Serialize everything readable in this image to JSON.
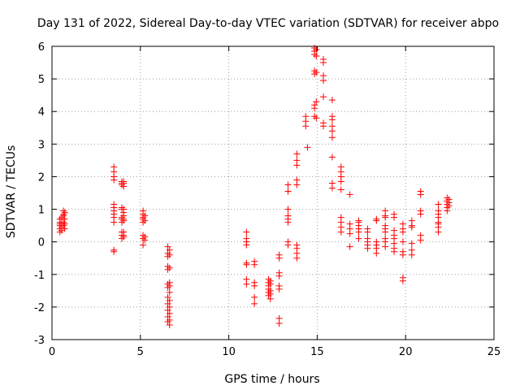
{
  "chart_data": {
    "type": "scatter",
    "title": "Day 131 of 2022, Sidereal Day-to-day VTEC variation (SDTVAR) for receiver abpo",
    "xlabel": "GPS time / hours",
    "ylabel": "SDTVAR / TECUs",
    "xlim": [
      0,
      25
    ],
    "ylim": [
      -3,
      6
    ],
    "xticks": [
      0,
      5,
      10,
      15,
      20,
      25
    ],
    "yticks": [
      -3,
      -2,
      -1,
      0,
      1,
      2,
      3,
      4,
      5,
      6
    ],
    "xtick_labels": [
      "0",
      "5",
      "10",
      "15",
      "20",
      "25"
    ],
    "ytick_labels": [
      "-3",
      "-2",
      "-1",
      "0",
      "1",
      "2",
      "3",
      "4",
      "5",
      "6"
    ],
    "grid": true,
    "marker": "+",
    "color": "#ff0000",
    "series": [
      {
        "name": "SDTVAR",
        "points": [
          [
            0.45,
            0.3
          ],
          [
            0.45,
            0.4
          ],
          [
            0.45,
            0.5
          ],
          [
            0.45,
            0.55
          ],
          [
            0.45,
            0.6
          ],
          [
            0.45,
            0.7
          ],
          [
            0.55,
            0.35
          ],
          [
            0.55,
            0.45
          ],
          [
            0.55,
            0.6
          ],
          [
            0.55,
            0.7
          ],
          [
            0.55,
            0.75
          ],
          [
            0.65,
            0.5
          ],
          [
            0.65,
            0.6
          ],
          [
            0.65,
            0.8
          ],
          [
            0.65,
            0.85
          ],
          [
            0.65,
            0.95
          ],
          [
            0.72,
            0.4
          ],
          [
            0.72,
            0.55
          ],
          [
            0.72,
            0.7
          ],
          [
            0.72,
            0.9
          ],
          [
            3.5,
            2.3
          ],
          [
            3.5,
            2.15
          ],
          [
            3.5,
            2.0
          ],
          [
            3.5,
            1.9
          ],
          [
            3.5,
            1.15
          ],
          [
            3.5,
            1.05
          ],
          [
            3.5,
            0.95
          ],
          [
            3.5,
            0.85
          ],
          [
            3.5,
            0.75
          ],
          [
            3.5,
            0.6
          ],
          [
            3.5,
            -0.25
          ],
          [
            3.5,
            -0.3
          ],
          [
            3.95,
            1.85
          ],
          [
            3.95,
            1.8
          ],
          [
            3.95,
            1.75
          ],
          [
            3.95,
            1.05
          ],
          [
            3.95,
            1.0
          ],
          [
            3.95,
            0.75
          ],
          [
            3.95,
            0.7
          ],
          [
            3.95,
            0.6
          ],
          [
            3.95,
            0.3
          ],
          [
            3.95,
            0.2
          ],
          [
            3.95,
            0.1
          ],
          [
            4.05,
            1.85
          ],
          [
            4.05,
            1.8
          ],
          [
            4.05,
            1.7
          ],
          [
            4.05,
            1.0
          ],
          [
            4.05,
            0.9
          ],
          [
            4.05,
            0.8
          ],
          [
            4.05,
            0.7
          ],
          [
            4.05,
            0.65
          ],
          [
            4.05,
            0.3
          ],
          [
            4.05,
            0.2
          ],
          [
            4.05,
            0.15
          ],
          [
            5.15,
            0.95
          ],
          [
            5.15,
            0.85
          ],
          [
            5.15,
            0.75
          ],
          [
            5.15,
            0.7
          ],
          [
            5.15,
            0.6
          ],
          [
            5.15,
            0.2
          ],
          [
            5.15,
            0.1
          ],
          [
            5.15,
            -0.1
          ],
          [
            5.25,
            0.8
          ],
          [
            5.25,
            0.65
          ],
          [
            5.25,
            0.15
          ],
          [
            5.25,
            0.05
          ],
          [
            6.55,
            -0.15
          ],
          [
            6.55,
            -0.35
          ],
          [
            6.55,
            -0.45
          ],
          [
            6.55,
            -0.75
          ],
          [
            6.55,
            -0.85
          ],
          [
            6.55,
            -1.3
          ],
          [
            6.55,
            -1.4
          ],
          [
            6.55,
            -1.7
          ],
          [
            6.55,
            -1.9
          ],
          [
            6.55,
            -2.1
          ],
          [
            6.55,
            -2.3
          ],
          [
            6.55,
            -2.45
          ],
          [
            6.65,
            -0.25
          ],
          [
            6.65,
            -0.4
          ],
          [
            6.65,
            -0.8
          ],
          [
            6.65,
            -1.25
          ],
          [
            6.65,
            -1.35
          ],
          [
            6.65,
            -1.55
          ],
          [
            6.65,
            -1.8
          ],
          [
            6.65,
            -2.0
          ],
          [
            6.65,
            -2.2
          ],
          [
            6.65,
            -2.4
          ],
          [
            6.65,
            -2.55
          ],
          [
            11.0,
            0.3
          ],
          [
            11.0,
            0.1
          ],
          [
            11.0,
            0.0
          ],
          [
            11.0,
            -0.1
          ],
          [
            11.0,
            -0.65
          ],
          [
            11.0,
            -0.7
          ],
          [
            11.0,
            -1.15
          ],
          [
            11.0,
            -1.3
          ],
          [
            11.45,
            -0.6
          ],
          [
            11.45,
            -0.7
          ],
          [
            11.45,
            -1.25
          ],
          [
            11.45,
            -1.35
          ],
          [
            11.45,
            -1.7
          ],
          [
            11.45,
            -1.9
          ],
          [
            12.25,
            -1.15
          ],
          [
            12.25,
            -1.25
          ],
          [
            12.25,
            -1.35
          ],
          [
            12.25,
            -1.45
          ],
          [
            12.25,
            -1.55
          ],
          [
            12.25,
            -1.65
          ],
          [
            12.35,
            -1.2
          ],
          [
            12.35,
            -1.3
          ],
          [
            12.35,
            -1.5
          ],
          [
            12.35,
            -1.6
          ],
          [
            12.35,
            -1.75
          ],
          [
            12.85,
            -0.4
          ],
          [
            12.85,
            -0.5
          ],
          [
            12.85,
            -0.95
          ],
          [
            12.85,
            -1.05
          ],
          [
            12.85,
            -1.35
          ],
          [
            12.85,
            -1.45
          ],
          [
            12.85,
            -2.35
          ],
          [
            12.85,
            -2.5
          ],
          [
            13.35,
            1.75
          ],
          [
            13.35,
            1.55
          ],
          [
            13.35,
            1.0
          ],
          [
            13.35,
            0.8
          ],
          [
            13.35,
            0.7
          ],
          [
            13.35,
            0.6
          ],
          [
            13.35,
            0.0
          ],
          [
            13.35,
            -0.1
          ],
          [
            13.85,
            2.7
          ],
          [
            13.85,
            2.5
          ],
          [
            13.85,
            2.35
          ],
          [
            13.85,
            1.9
          ],
          [
            13.85,
            1.75
          ],
          [
            13.85,
            -0.1
          ],
          [
            13.85,
            -0.2
          ],
          [
            13.85,
            -0.35
          ],
          [
            13.85,
            -0.5
          ],
          [
            14.35,
            3.85
          ],
          [
            14.35,
            3.7
          ],
          [
            14.35,
            3.55
          ],
          [
            14.45,
            2.9
          ],
          [
            14.85,
            5.95
          ],
          [
            14.85,
            5.85
          ],
          [
            14.85,
            5.75
          ],
          [
            14.85,
            5.25
          ],
          [
            14.85,
            5.15
          ],
          [
            14.85,
            4.2
          ],
          [
            14.85,
            4.1
          ],
          [
            14.85,
            3.85
          ],
          [
            14.95,
            5.9
          ],
          [
            14.95,
            5.7
          ],
          [
            14.95,
            5.2
          ],
          [
            14.95,
            4.3
          ],
          [
            14.95,
            3.8
          ],
          [
            15.35,
            5.6
          ],
          [
            15.35,
            5.5
          ],
          [
            15.35,
            5.1
          ],
          [
            15.35,
            4.95
          ],
          [
            15.35,
            4.45
          ],
          [
            15.35,
            3.65
          ],
          [
            15.35,
            3.55
          ],
          [
            15.85,
            4.35
          ],
          [
            15.85,
            3.85
          ],
          [
            15.85,
            3.75
          ],
          [
            15.85,
            3.55
          ],
          [
            15.85,
            3.4
          ],
          [
            15.85,
            3.2
          ],
          [
            15.85,
            2.6
          ],
          [
            15.85,
            1.8
          ],
          [
            15.85,
            1.65
          ],
          [
            16.35,
            2.3
          ],
          [
            16.35,
            2.15
          ],
          [
            16.35,
            2.0
          ],
          [
            16.35,
            1.85
          ],
          [
            16.35,
            1.6
          ],
          [
            16.35,
            0.75
          ],
          [
            16.35,
            0.6
          ],
          [
            16.35,
            0.45
          ],
          [
            16.35,
            0.3
          ],
          [
            16.85,
            1.45
          ],
          [
            16.85,
            0.55
          ],
          [
            16.85,
            0.4
          ],
          [
            16.85,
            0.25
          ],
          [
            16.85,
            -0.15
          ],
          [
            17.35,
            0.65
          ],
          [
            17.35,
            0.6
          ],
          [
            17.35,
            0.5
          ],
          [
            17.35,
            0.4
          ],
          [
            17.35,
            0.3
          ],
          [
            17.35,
            0.1
          ],
          [
            17.85,
            0.4
          ],
          [
            17.85,
            0.3
          ],
          [
            17.85,
            0.1
          ],
          [
            17.85,
            0.0
          ],
          [
            17.85,
            -0.1
          ],
          [
            17.85,
            -0.2
          ],
          [
            18.35,
            0.7
          ],
          [
            18.35,
            0.65
          ],
          [
            18.35,
            0.0
          ],
          [
            18.35,
            -0.1
          ],
          [
            18.35,
            -0.2
          ],
          [
            18.35,
            -0.35
          ],
          [
            18.85,
            0.95
          ],
          [
            18.85,
            0.8
          ],
          [
            18.85,
            0.75
          ],
          [
            18.85,
            0.5
          ],
          [
            18.85,
            0.4
          ],
          [
            18.85,
            0.3
          ],
          [
            18.85,
            0.1
          ],
          [
            18.85,
            0.0
          ],
          [
            18.85,
            -0.15
          ],
          [
            19.35,
            0.85
          ],
          [
            19.35,
            0.75
          ],
          [
            19.35,
            0.35
          ],
          [
            19.35,
            0.2
          ],
          [
            19.35,
            0.1
          ],
          [
            19.35,
            -0.05
          ],
          [
            19.35,
            -0.2
          ],
          [
            19.35,
            -0.3
          ],
          [
            19.85,
            0.55
          ],
          [
            19.85,
            0.4
          ],
          [
            19.85,
            0.3
          ],
          [
            19.85,
            0.0
          ],
          [
            19.85,
            -0.3
          ],
          [
            19.85,
            -0.4
          ],
          [
            19.85,
            -1.1
          ],
          [
            19.85,
            -1.2
          ],
          [
            20.35,
            0.65
          ],
          [
            20.35,
            0.5
          ],
          [
            20.35,
            0.45
          ],
          [
            20.35,
            -0.05
          ],
          [
            20.35,
            -0.25
          ],
          [
            20.35,
            -0.4
          ],
          [
            20.85,
            1.55
          ],
          [
            20.85,
            1.45
          ],
          [
            20.85,
            0.95
          ],
          [
            20.85,
            0.85
          ],
          [
            20.85,
            0.2
          ],
          [
            20.85,
            0.05
          ],
          [
            21.85,
            1.15
          ],
          [
            21.85,
            0.95
          ],
          [
            21.85,
            0.85
          ],
          [
            21.85,
            0.75
          ],
          [
            21.85,
            0.6
          ],
          [
            21.85,
            0.55
          ],
          [
            21.85,
            0.45
          ],
          [
            21.85,
            0.3
          ],
          [
            22.35,
            1.35
          ],
          [
            22.35,
            1.25
          ],
          [
            22.35,
            1.15
          ],
          [
            22.35,
            1.05
          ],
          [
            22.35,
            0.95
          ],
          [
            22.45,
            1.3
          ],
          [
            22.45,
            1.2
          ],
          [
            22.45,
            1.1
          ]
        ]
      }
    ]
  }
}
